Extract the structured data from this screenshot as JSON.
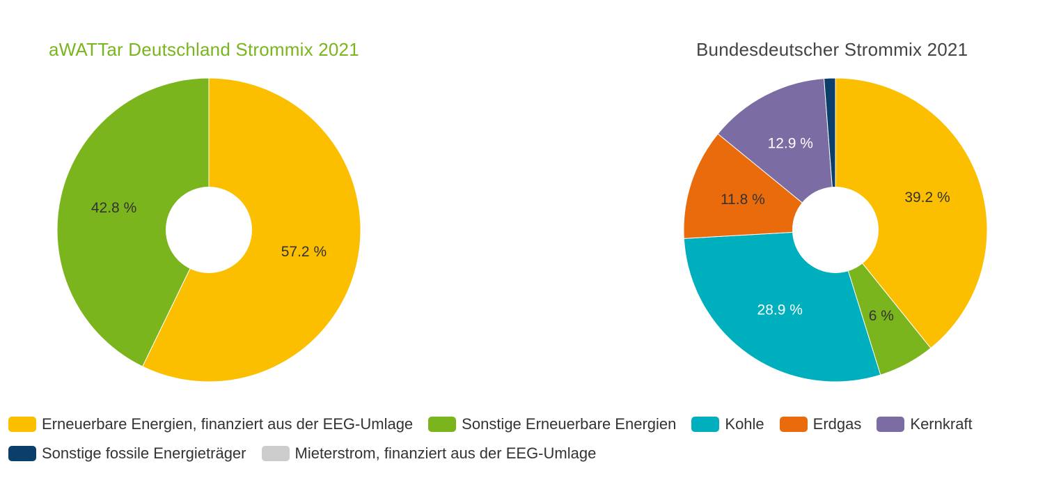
{
  "colors": {
    "left_title": "#7ab51d",
    "right_title": "#444444",
    "label_dark": "#333333",
    "label_light": "#ffffff"
  },
  "chart_data": [
    {
      "type": "pie",
      "title": "aWATTar Deutschland Strommix 2021",
      "start_angle_deg": 0,
      "slices": [
        {
          "label": "Erneuerbare Energien, finanziert aus der EEG-Umlage",
          "value": 57.2,
          "display": "57.2 %",
          "color": "#fbbf00",
          "label_color": "#333333"
        },
        {
          "label": "Sonstige Erneuerbare Energien",
          "value": 42.8,
          "display": "42.8 %",
          "color": "#7ab51d",
          "label_color": "#333333"
        }
      ]
    },
    {
      "type": "pie",
      "title": "Bundesdeutscher Strommix 2021",
      "start_angle_deg": 0,
      "slices": [
        {
          "label": "Erneuerbare Energien, finanziert aus der EEG-Umlage",
          "value": 39.2,
          "display": "39.2 %",
          "color": "#fbbf00",
          "label_color": "#333333"
        },
        {
          "label": "Sonstige Erneuerbare Energien",
          "value": 6,
          "display": "6 %",
          "color": "#7ab51d",
          "label_color": "#333333"
        },
        {
          "label": "Kohle",
          "value": 28.9,
          "display": "28.9 %",
          "color": "#00afbe",
          "label_color": "#ffffff"
        },
        {
          "label": "Erdgas",
          "value": 11.8,
          "display": "11.8 %",
          "color": "#ea6b0c",
          "label_color": "#333333"
        },
        {
          "label": "Kernkraft",
          "value": 12.9,
          "display": "12.9 %",
          "color": "#7b6ca3",
          "label_color": "#ffffff"
        },
        {
          "label": "Sonstige fossile Energieträger",
          "value": 1.2,
          "display": "",
          "color": "#0c3e6b",
          "label_color": "#ffffff"
        }
      ]
    }
  ],
  "legend": {
    "rows": [
      [
        {
          "label": "Erneuerbare Energien, finanziert aus der EEG-Umlage",
          "color": "#fbbf00"
        },
        {
          "label": "Sonstige Erneuerbare Energien",
          "color": "#7ab51d"
        },
        {
          "label": "Kohle",
          "color": "#00afbe"
        },
        {
          "label": "Erdgas",
          "color": "#ea6b0c"
        },
        {
          "label": "Kernkraft",
          "color": "#7b6ca3"
        }
      ],
      [
        {
          "label": "Sonstige fossile Energieträger",
          "color": "#0c3e6b"
        },
        {
          "label": "Mieterstrom, finanziert aus der EEG-Umlage",
          "color": "#cccccc"
        }
      ]
    ]
  }
}
